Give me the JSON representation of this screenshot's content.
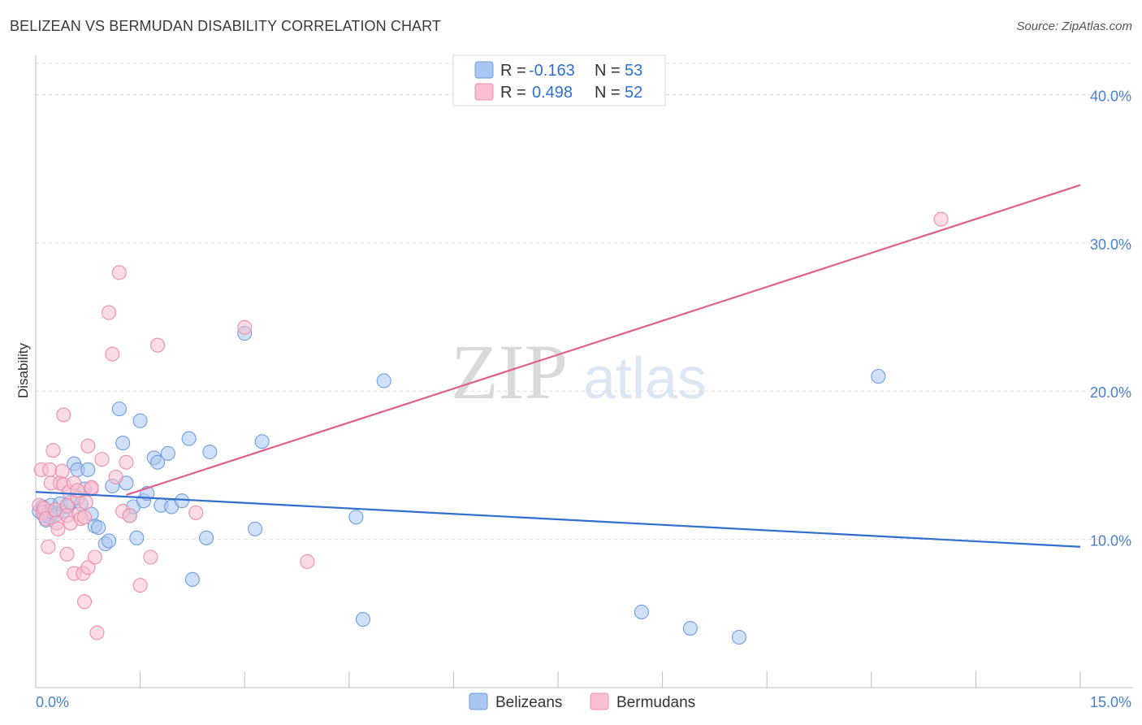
{
  "title": "BELIZEAN VS BERMUDAN DISABILITY CORRELATION CHART",
  "source": "Source: ZipAtlas.com",
  "watermark": {
    "zip": "ZIP",
    "atlas": "atlas"
  },
  "legend": {
    "rows": [
      {
        "r_label": "R =",
        "r_value": "-0.163",
        "n_label": "N =",
        "n_value": "53",
        "color": "#a9c6f0",
        "stroke": "#6f9ee0"
      },
      {
        "r_label": "R =",
        "r_value": "0.498",
        "n_label": "N =",
        "n_value": "52",
        "color": "#f7bfd0",
        "stroke": "#ec8fad"
      }
    ]
  },
  "bottom_legend": [
    {
      "label": "Belizeans",
      "color": "#a9c6f0",
      "stroke": "#6f9ee0"
    },
    {
      "label": "Bermudans",
      "color": "#f7bfd0",
      "stroke": "#ec8fad"
    }
  ],
  "chart_data": {
    "type": "scatter",
    "title": "BELIZEAN VS BERMUDAN DISABILITY CORRELATION CHART",
    "ylabel": "Disability",
    "xlabel": "",
    "xlim": [
      0,
      15
    ],
    "ylim": [
      0,
      42
    ],
    "x_tick_labels": [
      {
        "value": 0,
        "label": "0.0%"
      },
      {
        "value": 15,
        "label": "15.0%"
      }
    ],
    "y_tick_labels": [
      {
        "value": 10,
        "label": "10.0%"
      },
      {
        "value": 20,
        "label": "20.0%"
      },
      {
        "value": 30,
        "label": "30.0%"
      },
      {
        "value": 40,
        "label": "40.0%"
      }
    ],
    "grid": true,
    "legend_position": "top-center",
    "series": [
      {
        "name": "Belizeans",
        "color": "#6f9ee0",
        "fill": "#a9c6f0",
        "trend": {
          "x": [
            0,
            15
          ],
          "y": [
            13.2,
            9.5
          ],
          "color": "#2f6fcf"
        },
        "points": [
          [
            0.05,
            11.9
          ],
          [
            0.1,
            12.2
          ],
          [
            0.12,
            11.6
          ],
          [
            0.15,
            11.3
          ],
          [
            0.18,
            11.9
          ],
          [
            0.2,
            11.5
          ],
          [
            0.22,
            12.3
          ],
          [
            0.25,
            11.8
          ],
          [
            0.3,
            11.7
          ],
          [
            0.35,
            12.4
          ],
          [
            0.4,
            11.9
          ],
          [
            0.45,
            12.2
          ],
          [
            0.5,
            12.5
          ],
          [
            0.55,
            15.1
          ],
          [
            0.6,
            14.7
          ],
          [
            0.65,
            12.4
          ],
          [
            0.7,
            13.4
          ],
          [
            0.75,
            14.7
          ],
          [
            0.8,
            11.7
          ],
          [
            0.85,
            10.9
          ],
          [
            0.9,
            10.8
          ],
          [
            1.0,
            9.7
          ],
          [
            1.05,
            9.9
          ],
          [
            1.1,
            13.6
          ],
          [
            1.2,
            18.8
          ],
          [
            1.25,
            16.5
          ],
          [
            1.3,
            13.8
          ],
          [
            1.35,
            11.6
          ],
          [
            1.4,
            12.2
          ],
          [
            1.45,
            10.1
          ],
          [
            1.5,
            18.0
          ],
          [
            1.55,
            12.6
          ],
          [
            1.6,
            13.1
          ],
          [
            1.7,
            15.5
          ],
          [
            1.75,
            15.2
          ],
          [
            1.8,
            12.3
          ],
          [
            1.9,
            15.8
          ],
          [
            1.95,
            12.2
          ],
          [
            2.1,
            12.6
          ],
          [
            2.2,
            16.8
          ],
          [
            2.25,
            7.3
          ],
          [
            2.45,
            10.1
          ],
          [
            2.5,
            15.9
          ],
          [
            3.0,
            23.9
          ],
          [
            3.15,
            10.7
          ],
          [
            3.25,
            16.6
          ],
          [
            4.6,
            11.5
          ],
          [
            4.7,
            4.6
          ],
          [
            5.0,
            20.7
          ],
          [
            8.7,
            5.1
          ],
          [
            9.4,
            4.0
          ],
          [
            10.1,
            3.4
          ],
          [
            12.1,
            21.0
          ]
        ]
      },
      {
        "name": "Bermudans",
        "color": "#ec8fad",
        "fill": "#f7bfd0",
        "trend": {
          "x": [
            1.3,
            15
          ],
          "y": [
            13.0,
            33.9
          ],
          "color": "#e0608d"
        },
        "points": [
          [
            0.05,
            12.3
          ],
          [
            0.08,
            14.7
          ],
          [
            0.1,
            11.8
          ],
          [
            0.12,
            12.1
          ],
          [
            0.15,
            11.4
          ],
          [
            0.18,
            9.5
          ],
          [
            0.2,
            14.7
          ],
          [
            0.22,
            13.8
          ],
          [
            0.25,
            16.0
          ],
          [
            0.28,
            12.0
          ],
          [
            0.3,
            11.1
          ],
          [
            0.32,
            10.7
          ],
          [
            0.35,
            13.8
          ],
          [
            0.38,
            14.6
          ],
          [
            0.4,
            13.7
          ],
          [
            0.4,
            18.4
          ],
          [
            0.45,
            12.3
          ],
          [
            0.45,
            11.6
          ],
          [
            0.48,
            13.2
          ],
          [
            0.5,
            11.1
          ],
          [
            0.45,
            9.0
          ],
          [
            0.55,
            13.8
          ],
          [
            0.55,
            7.7
          ],
          [
            0.6,
            12.8
          ],
          [
            0.6,
            13.3
          ],
          [
            0.62,
            11.7
          ],
          [
            0.65,
            11.4
          ],
          [
            0.7,
            11.5
          ],
          [
            0.68,
            7.7
          ],
          [
            0.72,
            12.5
          ],
          [
            0.7,
            5.8
          ],
          [
            0.75,
            16.3
          ],
          [
            0.75,
            8.1
          ],
          [
            0.8,
            13.4
          ],
          [
            0.8,
            13.5
          ],
          [
            0.85,
            8.8
          ],
          [
            0.88,
            3.7
          ],
          [
            0.95,
            15.4
          ],
          [
            1.05,
            25.3
          ],
          [
            1.1,
            22.5
          ],
          [
            1.15,
            14.2
          ],
          [
            1.2,
            28.0
          ],
          [
            1.25,
            11.9
          ],
          [
            1.3,
            15.2
          ],
          [
            1.35,
            11.6
          ],
          [
            1.5,
            6.9
          ],
          [
            1.65,
            8.8
          ],
          [
            1.75,
            23.1
          ],
          [
            2.3,
            11.8
          ],
          [
            3.0,
            24.3
          ],
          [
            3.9,
            8.5
          ],
          [
            13.0,
            31.6
          ]
        ]
      }
    ]
  }
}
